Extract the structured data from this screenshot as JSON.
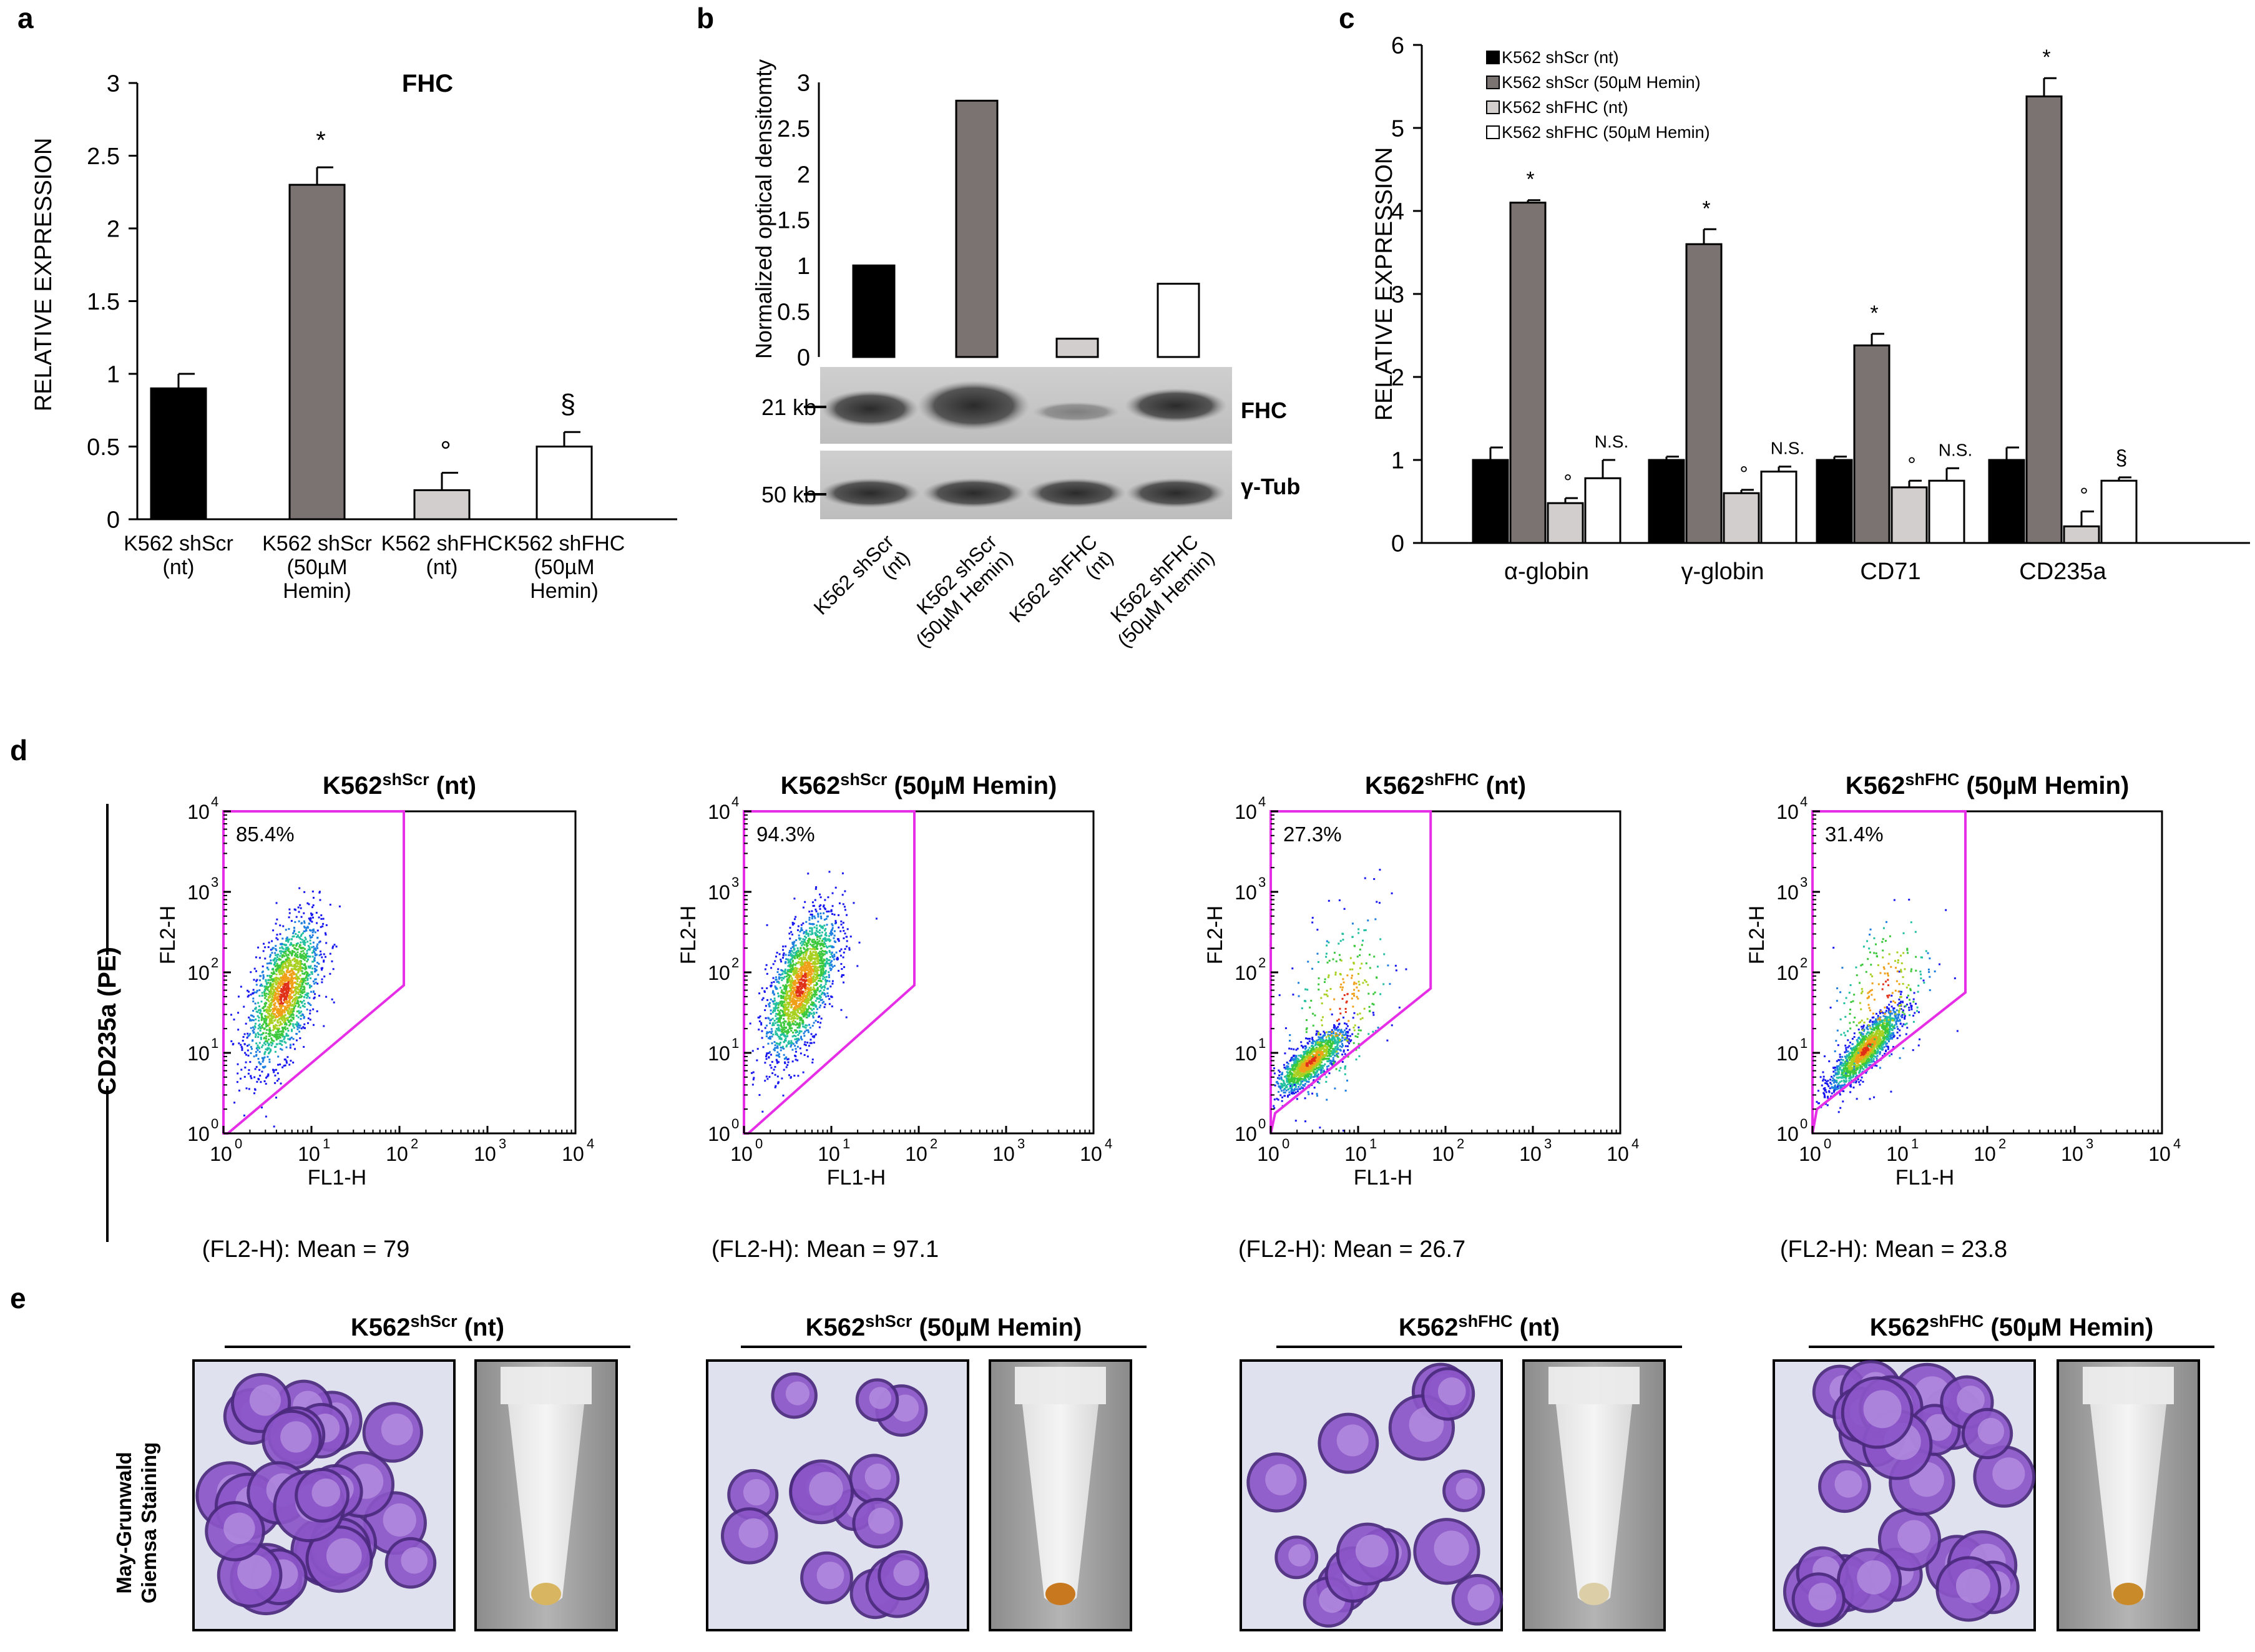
{
  "colors": {
    "nt_scr": "#000000",
    "hemin_scr": "#7b7272",
    "nt_fhc": "#d3cece",
    "hemin_fhc": "#ffffff",
    "gate": "#e62ee6",
    "cell": "#8b55c8",
    "cell_dark": "#4b2a7e",
    "bg_smear": "#dfe2ee"
  },
  "panel_labels": {
    "a": "a",
    "b": "b",
    "c": "c",
    "d": "d",
    "e": "e"
  },
  "chart_data": [
    {
      "id": "a",
      "type": "bar",
      "title": "FHC",
      "ylabel": "RELATIVE EXPRESSION",
      "ylim": [
        0,
        3
      ],
      "yticks": [
        "0",
        "0.5",
        "1",
        "1.5",
        "2",
        "2.5",
        "3"
      ],
      "categories": [
        [
          "K562 shScr",
          "(nt)"
        ],
        [
          "K562 shScr",
          "(50µM",
          "Hemin)"
        ],
        [
          "K562 shFHC",
          "(nt)"
        ],
        [
          "K562 shFHC",
          "(50µM",
          "Hemin)"
        ]
      ],
      "values": [
        0.9,
        2.3,
        0.2,
        0.5
      ],
      "errors": [
        0.1,
        0.12,
        0.12,
        0.1
      ],
      "annotations": [
        "",
        "*",
        "°",
        "§"
      ]
    },
    {
      "id": "b",
      "type": "bar",
      "ylabel": "Normalized optical densitomty",
      "ylim": [
        0,
        3
      ],
      "yticks": [
        "0",
        "0.5",
        "1",
        "1.5",
        "2",
        "2.5",
        "3"
      ],
      "values": [
        1.0,
        2.8,
        0.2,
        0.8
      ],
      "blot_markers": [
        "21 kb",
        "50 kb"
      ],
      "blot_labels": [
        "FHC",
        "γ-Tub"
      ],
      "lane_labels": [
        [
          "K562 shScr",
          "(nt)"
        ],
        [
          "K562 shScr",
          "(50µM Hemin)"
        ],
        [
          "K562 shFHC",
          "(nt)"
        ],
        [
          "K562 shFHC",
          "(50µM Hemin)"
        ]
      ]
    },
    {
      "id": "c",
      "type": "bar",
      "ylabel": "RELATIVE  EXPRESSION",
      "ylim": [
        0,
        6
      ],
      "yticks": [
        "0",
        "1",
        "2",
        "3",
        "4",
        "5",
        "6"
      ],
      "categories": [
        "α-globin",
        "γ-globin",
        "CD71",
        "CD235a"
      ],
      "legend": [
        "K562  shScr  (nt)",
        "K562  shScr  (50µM  Hemin)",
        "K562  shFHC  (nt)",
        "K562  shFHC  (50µM  Hemin)"
      ],
      "series": [
        {
          "name": "K562 shScr (nt)",
          "values": [
            1.0,
            1.0,
            1.0,
            1.0
          ],
          "errors": [
            0.15,
            0.04,
            0.04,
            0.15
          ],
          "annotations": [
            "",
            "",
            "",
            ""
          ]
        },
        {
          "name": "K562 shScr (50µM Hemin)",
          "values": [
            4.1,
            3.6,
            2.38,
            5.38
          ],
          "errors": [
            0.03,
            0.18,
            0.14,
            0.22
          ],
          "annotations": [
            "*",
            "*",
            "*",
            "*"
          ]
        },
        {
          "name": "K562 shFHC (nt)",
          "values": [
            0.48,
            0.6,
            0.67,
            0.2
          ],
          "errors": [
            0.06,
            0.04,
            0.08,
            0.18
          ],
          "annotations": [
            "°",
            "°",
            "°",
            "°"
          ]
        },
        {
          "name": "K562 shFHC (50µM Hemin)",
          "values": [
            0.78,
            0.86,
            0.75,
            0.75
          ],
          "errors": [
            0.22,
            0.06,
            0.15,
            0.04
          ],
          "annotations": [
            "N.S.",
            "N.S.",
            "N.S.",
            "§"
          ]
        }
      ]
    },
    {
      "id": "d",
      "type": "scatter",
      "ylabel": "CD235a  (PE)",
      "plots": [
        {
          "title_base": "K562",
          "title_sup": "shScr",
          "title_rest": " (nt)",
          "gate_pct": "85.4%",
          "mean_text": "(FL2-H): Mean = 79",
          "xlabel": "FL1-H",
          "ylabel": "FL2-H",
          "xticks": [
            "10",
            "10",
            "10",
            "10",
            "10"
          ],
          "xexps": [
            "0",
            "1",
            "2",
            "3",
            "4"
          ],
          "yticks": [
            "10",
            "10",
            "10",
            "10",
            "10"
          ],
          "yexps": [
            "0",
            "1",
            "2",
            "3",
            "4"
          ]
        },
        {
          "title_base": "K562",
          "title_sup": "shScr",
          "title_rest": " (50µM Hemin)",
          "gate_pct": "94.3%",
          "mean_text": "(FL2-H): Mean = 97.1",
          "xlabel": "FL1-H",
          "ylabel": "FL2-H",
          "xticks": [
            "10",
            "10",
            "10",
            "10",
            "10"
          ],
          "xexps": [
            "0",
            "1",
            "2",
            "3",
            "4"
          ],
          "yticks": [
            "10",
            "10",
            "10",
            "10",
            "10"
          ],
          "yexps": [
            "0",
            "1",
            "2",
            "3",
            "4"
          ]
        },
        {
          "title_base": "K562",
          "title_sup": "shFHC",
          "title_rest": " (nt)",
          "gate_pct": "27.3%",
          "mean_text": "(FL2-H): Mean = 26.7",
          "xlabel": "FL1-H",
          "ylabel": "FL2-H",
          "xticks": [
            "10",
            "10",
            "10",
            "10",
            "10"
          ],
          "xexps": [
            "0",
            "1",
            "2",
            "3",
            "4"
          ],
          "yticks": [
            "10",
            "10",
            "10",
            "10",
            "10"
          ],
          "yexps": [
            "0",
            "1",
            "2",
            "3",
            "4"
          ]
        },
        {
          "title_base": "K562",
          "title_sup": "shFHC",
          "title_rest": " (50µM Hemin)",
          "gate_pct": "31.4%",
          "mean_text": "(FL2-H): Mean = 23.8",
          "xlabel": "FL1-H",
          "ylabel": "FL2-H",
          "xticks": [
            "10",
            "10",
            "10",
            "10",
            "10"
          ],
          "xexps": [
            "0",
            "1",
            "2",
            "3",
            "4"
          ],
          "yticks": [
            "10",
            "10",
            "10",
            "10",
            "10"
          ],
          "yexps": [
            "0",
            "1",
            "2",
            "3",
            "4"
          ]
        }
      ]
    }
  ],
  "panel_e": {
    "side_label": [
      "May-Grunwald",
      "Giemsa  Staining"
    ],
    "groups": [
      {
        "title_base": "K562",
        "title_sup": "shScr",
        "title_rest": " (nt)",
        "pellet": "#d8b560"
      },
      {
        "title_base": "K562",
        "title_sup": "shScr",
        "title_rest": " (50µM Hemin)",
        "pellet": "#c8781e"
      },
      {
        "title_base": "K562",
        "title_sup": "shFHC",
        "title_rest": " (nt)",
        "pellet": "#dccfa8"
      },
      {
        "title_base": "K562",
        "title_sup": "shFHC",
        "title_rest": " (50µM Hemin)",
        "pellet": "#c98a2a"
      }
    ]
  }
}
